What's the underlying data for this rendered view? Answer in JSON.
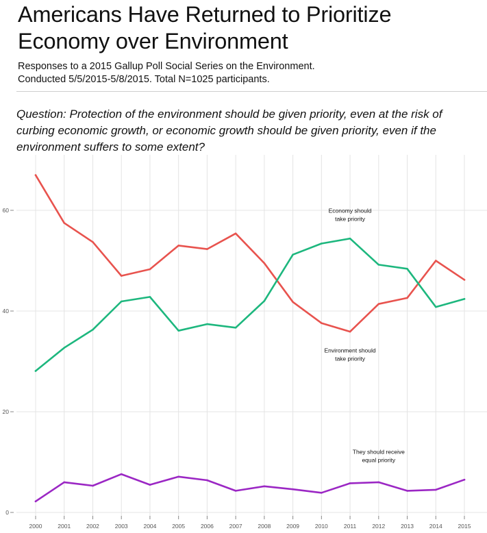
{
  "header": {
    "title_line1": "Americans Have Returned to Prioritize",
    "title_line2": "Economy over Environment",
    "subtitle_line1": "Responses to a 2015 Gallup Poll Social Series on the Environment.",
    "subtitle_line2": "Conducted 5/5/2015-5/8/2015. Total N=1025 participants.",
    "question_line1": "Question: Protection of the environment should be given priority, even at the risk of",
    "question_line2": "curbing economic growth, or economic growth should be given priority, even if the",
    "question_line3": "environment suffers to some extent?"
  },
  "colors": {
    "economy": "#e8534e",
    "environment": "#1db77e",
    "equal": "#9b27c4",
    "grid": "#e4e4e4"
  },
  "chart_data": {
    "type": "line",
    "x": [
      2000,
      2001,
      2002,
      2003,
      2004,
      2005,
      2006,
      2007,
      2008,
      2009,
      2010,
      2011,
      2012,
      2013,
      2014,
      2015
    ],
    "x_tick_labels": [
      "2000",
      "2001",
      "2002",
      "2003",
      "2004",
      "2005",
      "2006",
      "2007",
      "2008",
      "2009",
      "2010",
      "2011",
      "2012",
      "2013",
      "2014",
      "2015"
    ],
    "y_ticks": [
      0,
      20,
      40,
      60
    ],
    "y_tick_labels": [
      "0",
      "20",
      "40",
      "60"
    ],
    "ylim": [
      0,
      70
    ],
    "xlim": [
      2000,
      2015
    ],
    "grid": true,
    "series": [
      {
        "key": "economy",
        "values": [
          67,
          57.5,
          53.7,
          47,
          48.3,
          53,
          52.3,
          55.4,
          49.5,
          41.8,
          37.6,
          35.9,
          41.4,
          42.6,
          50,
          46.2
        ]
      },
      {
        "key": "environment",
        "values": [
          28.1,
          32.7,
          36.3,
          41.9,
          42.8,
          36.1,
          37.4,
          36.7,
          42,
          51.2,
          53.4,
          54.4,
          49.2,
          48.4,
          40.8,
          42.4
        ]
      },
      {
        "key": "equal",
        "values": [
          2.2,
          6,
          5.3,
          7.6,
          5.5,
          7.1,
          6.4,
          4.3,
          5.2,
          4.6,
          3.9,
          5.8,
          6,
          4.3,
          4.5,
          6.5
        ]
      }
    ],
    "annotations": [
      {
        "series": "economy",
        "line1": "Economy should",
        "line2": "take priority",
        "year": 2011,
        "value": 59.5
      },
      {
        "series": "environment",
        "line1": "Environment should",
        "line2": "take priority",
        "year": 2011,
        "value": 31.8
      },
      {
        "series": "equal",
        "line1": "They should receive",
        "line2": "equal priority",
        "year": 2012,
        "value": 11.6
      }
    ]
  }
}
